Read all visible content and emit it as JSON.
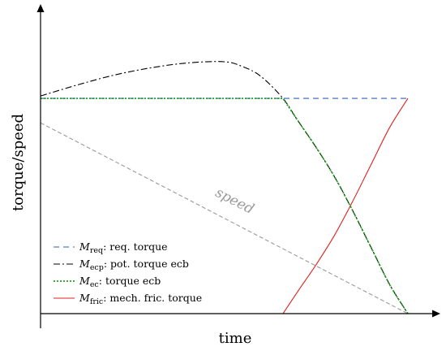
{
  "chart_data": {
    "type": "line",
    "xlabel": "time",
    "ylabel": "torque/speed",
    "xlim": [
      0,
      100
    ],
    "ylim": [
      0,
      100
    ],
    "grid": false,
    "legend_placement": "bottom-left",
    "annotations": [
      {
        "text": "speed",
        "x": 57,
        "y": 61
      }
    ],
    "series": [
      {
        "key": "req",
        "symbol": "M",
        "sub": "req",
        "desc": ": req. torque",
        "color": "#3060c0",
        "dash": "7,5",
        "x": [
          0,
          100
        ],
        "y": [
          88,
          88
        ]
      },
      {
        "key": "ecp",
        "symbol": "M",
        "sub": "ecp",
        "desc": ": pot. torque ecb",
        "color": "#000000",
        "dash": "8,3,2,3",
        "x": [
          0,
          10,
          20,
          30,
          40,
          50,
          55,
          60,
          66,
          70,
          75,
          80,
          85,
          90,
          95,
          100
        ],
        "y": [
          89,
          93.5,
          97.5,
          100.5,
          102.5,
          103,
          101,
          97,
          88,
          79,
          68,
          56,
          42,
          27,
          12,
          0
        ]
      },
      {
        "key": "ec",
        "symbol": "M",
        "sub": "ec",
        "desc": ": torque ecb",
        "color": "#22a022",
        "dash": "2,2",
        "x": [
          0,
          66,
          70,
          75,
          80,
          85,
          90,
          95,
          100
        ],
        "y": [
          88,
          88,
          79,
          68,
          56,
          42,
          27,
          12,
          0
        ]
      },
      {
        "key": "fric",
        "symbol": "M",
        "sub": "fric",
        "desc": ": mech. fric. torque",
        "color": "#e02020",
        "dash": "",
        "x": [
          0,
          66,
          70,
          75,
          80,
          85,
          90,
          95,
          100
        ],
        "y": [
          0,
          0,
          9,
          20,
          32,
          46,
          61,
          76,
          88
        ]
      },
      {
        "key": "speed",
        "label_only": true,
        "color": "#9a9a9a",
        "dash": "5,3",
        "x": [
          0,
          100
        ],
        "y": [
          78,
          0
        ]
      }
    ]
  }
}
